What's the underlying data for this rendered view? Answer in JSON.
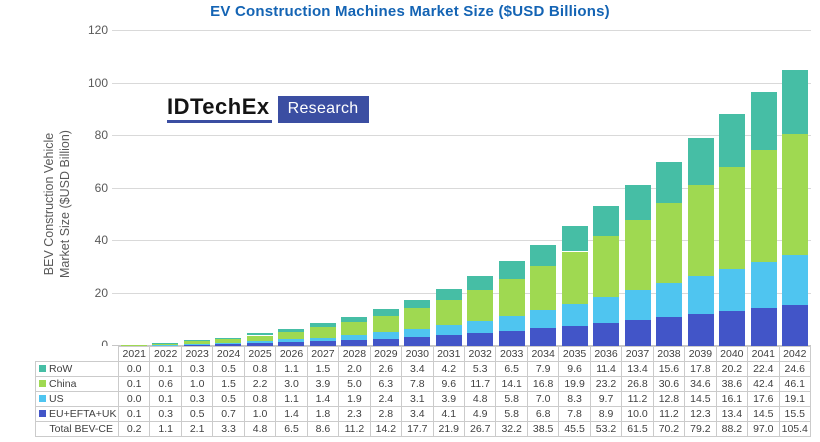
{
  "title": "EV Construction Machines Market Size ($USD Billions)",
  "logo": {
    "brand": "IDTechEx",
    "badge": "Research"
  },
  "y_axis_title": {
    "line1": "BEV Construction Vehicle",
    "line2": "Market Size ($USD Billion)"
  },
  "colors": {
    "title_blue": "#1464B4",
    "logo_blue": "#3B4EA2",
    "grid": "#D9D9D9",
    "axis_text": "#595959",
    "table_border": "#CBCBCB",
    "table_text": "#404040"
  },
  "chart_data": {
    "type": "bar",
    "stacked": true,
    "title": "EV Construction Machines Market Size ($USD Billions)",
    "xlabel": "",
    "ylabel": "BEV Construction Vehicle Market Size ($USD Billion)",
    "ylim": [
      0,
      120
    ],
    "y_ticks": [
      0,
      20,
      40,
      60,
      80,
      100,
      120
    ],
    "grid": true,
    "legend_position": "data-table-left",
    "categories": [
      "2021",
      "2022",
      "2023",
      "2024",
      "2025",
      "2026",
      "2027",
      "2028",
      "2029",
      "2030",
      "2031",
      "2032",
      "2033",
      "2034",
      "2035",
      "2036",
      "2037",
      "2038",
      "2039",
      "2040",
      "2041",
      "2042"
    ],
    "series": [
      {
        "name": "RoW",
        "color": "#46BEA5",
        "values": [
          0.0,
          0.1,
          0.3,
          0.5,
          0.8,
          1.1,
          1.5,
          2.0,
          2.6,
          3.4,
          4.2,
          5.3,
          6.5,
          7.9,
          9.6,
          11.4,
          13.4,
          15.6,
          17.8,
          20.2,
          22.4,
          24.6
        ]
      },
      {
        "name": "China",
        "color": "#9FD951",
        "values": [
          0.1,
          0.6,
          1.0,
          1.5,
          2.2,
          3.0,
          3.9,
          5.0,
          6.3,
          7.8,
          9.6,
          11.7,
          14.1,
          16.8,
          19.9,
          23.2,
          26.8,
          30.6,
          34.6,
          38.6,
          42.4,
          46.1
        ]
      },
      {
        "name": "US",
        "color": "#4FC5F0",
        "values": [
          0.0,
          0.1,
          0.3,
          0.5,
          0.8,
          1.1,
          1.4,
          1.9,
          2.4,
          3.1,
          3.9,
          4.8,
          5.8,
          7.0,
          8.3,
          9.7,
          11.2,
          12.8,
          14.5,
          16.1,
          17.6,
          19.1
        ]
      },
      {
        "name": "EU+EFTA+UK",
        "color": "#4255C8",
        "values": [
          0.1,
          0.3,
          0.5,
          0.7,
          1.0,
          1.4,
          1.8,
          2.3,
          2.8,
          3.4,
          4.1,
          4.9,
          5.8,
          6.8,
          7.8,
          8.9,
          10.0,
          11.2,
          12.3,
          13.4,
          14.5,
          15.5
        ]
      }
    ],
    "stack_order_bottom_to_top": [
      "EU+EFTA+UK",
      "US",
      "China",
      "RoW"
    ],
    "total_row": {
      "label": "Total BEV-CE",
      "values": [
        0.2,
        1.1,
        2.1,
        3.3,
        4.8,
        6.5,
        8.6,
        11.2,
        14.2,
        17.7,
        21.9,
        26.7,
        32.2,
        38.5,
        45.5,
        53.2,
        61.5,
        70.2,
        79.2,
        88.2,
        97.0,
        105.4
      ]
    }
  }
}
